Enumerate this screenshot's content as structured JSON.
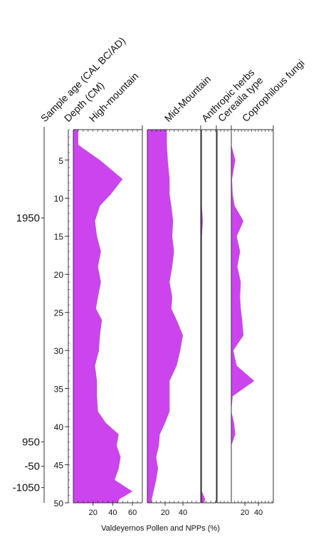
{
  "chart_data": {
    "type": "area",
    "title": "",
    "xlabel": "Valdeyernos Pollen and NPPs (%)",
    "fill_color": "#cc44ee",
    "axis_color": "#333333",
    "age_axis": {
      "label": "Sample age (CAL BC/AD)",
      "ticks": [
        {
          "label": "1950",
          "depth": 12.6
        },
        {
          "label": "950",
          "depth": 42.0
        },
        {
          "label": "-50",
          "depth": 45.2
        },
        {
          "label": "-1050",
          "depth": 48.0
        }
      ]
    },
    "depth_axis": {
      "label": "Depth (CM)",
      "ylim": [
        1,
        50
      ],
      "ticks": [
        5,
        10,
        15,
        20,
        25,
        30,
        35,
        40,
        45,
        50
      ]
    },
    "depth": [
      1,
      3,
      5,
      7.5,
      9.5,
      11,
      13,
      15,
      17,
      19,
      21,
      23,
      24.5,
      26,
      28,
      30,
      32,
      34,
      36,
      38,
      39.5,
      41,
      42.5,
      44,
      45.5,
      47,
      48.5,
      49.5,
      50
    ],
    "series": [
      {
        "name": "High-mountain",
        "xlim": [
          0,
          70
        ],
        "ticks": [
          20,
          40,
          60
        ],
        "values": [
          5,
          5,
          27,
          50,
          38,
          27,
          22,
          24,
          28,
          25,
          28,
          25,
          23,
          29,
          27,
          26,
          22,
          24,
          24,
          25,
          33,
          46,
          44,
          48,
          46,
          42,
          60,
          47,
          45
        ]
      },
      {
        "name": "Mid-Mountain",
        "xlim": [
          0,
          60
        ],
        "ticks": [
          20,
          40
        ],
        "values": [
          22,
          22,
          23,
          25,
          25,
          27,
          29,
          28,
          30,
          28,
          25,
          28,
          27,
          33,
          40,
          37,
          33,
          25,
          25,
          25,
          20,
          14,
          13,
          10,
          12,
          10,
          7,
          5,
          5
        ]
      },
      {
        "name": "Anthropic herbs",
        "xlim": [
          0,
          16
        ],
        "ticks": [],
        "values": [
          0.5,
          0.5,
          0.5,
          0.5,
          0.5,
          0.5,
          1.5,
          0.5,
          0.5,
          0.5,
          0.5,
          0.5,
          0.5,
          0.5,
          0.5,
          0.5,
          0.5,
          0.5,
          0.5,
          0.5,
          0.5,
          0.5,
          0.5,
          0.5,
          0.5,
          0.5,
          0.5,
          4,
          3
        ]
      },
      {
        "name": "Cereaila type",
        "xlim": [
          0,
          20
        ],
        "ticks": [],
        "values": [
          0,
          0,
          0,
          0,
          0,
          0,
          0,
          0,
          0,
          0,
          0,
          0,
          0,
          0,
          0,
          0,
          0,
          0,
          0,
          0,
          0,
          0,
          0,
          0,
          0,
          0,
          0,
          0,
          0
        ]
      },
      {
        "name": "Coprophilous fungi",
        "xlim": [
          0,
          62
        ],
        "ticks": [
          20,
          40
        ],
        "values": [
          0,
          0,
          6,
          1,
          2,
          5,
          18,
          8,
          13,
          9,
          14,
          13,
          14,
          16,
          18,
          3,
          8,
          34,
          2,
          0,
          4,
          6,
          0,
          0,
          0,
          0,
          0,
          0,
          0
        ]
      }
    ]
  }
}
